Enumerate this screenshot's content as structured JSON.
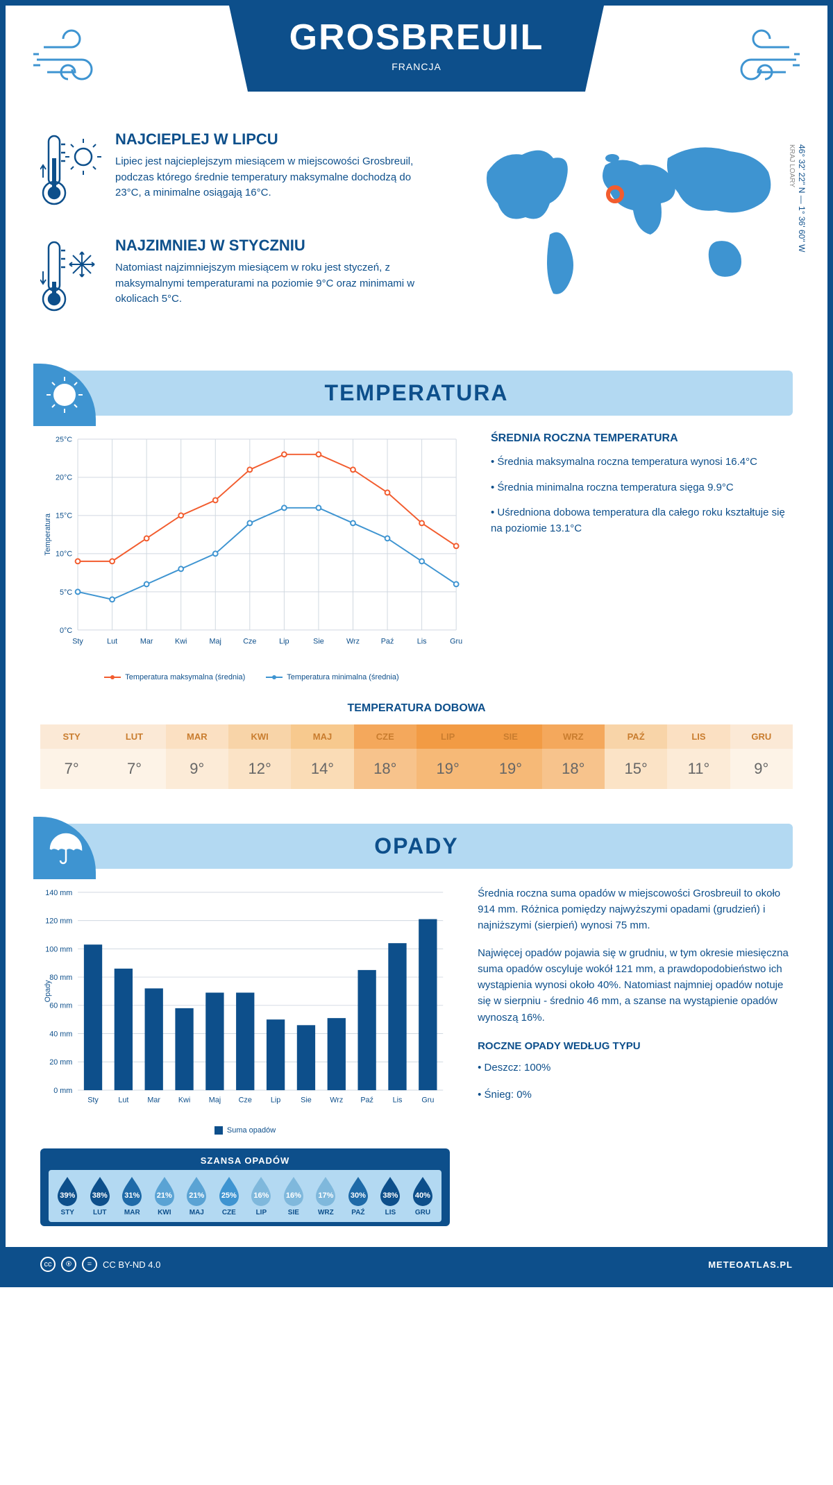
{
  "header": {
    "city": "GROSBREUIL",
    "country": "FRANCJA"
  },
  "coords": "46° 32' 22'' N — 1° 36' 60'' W",
  "region": "KRAJ LOARY",
  "intro": {
    "hot": {
      "title": "NAJCIEPLEJ W LIPCU",
      "text": "Lipiec jest najcieplejszym miesiącem w miejscowości Grosbreuil, podczas którego średnie temperatury maksymalne dochodzą do 23°C, a minimalne osiągają 16°C."
    },
    "cold": {
      "title": "NAJZIMNIEJ W STYCZNIU",
      "text": "Natomiast najzimniejszym miesiącem w roku jest styczeń, z maksymalnymi temperaturami na poziomie 9°C oraz minimami w okolicach 5°C."
    }
  },
  "sections": {
    "temp": "TEMPERATURA",
    "precip": "OPADY"
  },
  "temp_chart": {
    "type": "line",
    "months": [
      "Sty",
      "Lut",
      "Mar",
      "Kwi",
      "Maj",
      "Cze",
      "Lip",
      "Sie",
      "Wrz",
      "Paź",
      "Lis",
      "Gru"
    ],
    "ylabel": "Temperatura",
    "ylim": [
      0,
      25
    ],
    "ytick_step": 5,
    "ytick_suffix": "°C",
    "grid_color": "#d0d8e0",
    "series": [
      {
        "name": "Temperatura maksymalna (średnia)",
        "color": "#f25c2e",
        "values": [
          9,
          9,
          12,
          15,
          17,
          21,
          23,
          23,
          21,
          18,
          14,
          11
        ]
      },
      {
        "name": "Temperatura minimalna (średnia)",
        "color": "#3e94d1",
        "values": [
          5,
          4,
          6,
          8,
          10,
          14,
          16,
          16,
          14,
          12,
          9,
          6
        ]
      }
    ]
  },
  "temp_side": {
    "title": "ŚREDNIA ROCZNA TEMPERATURA",
    "bullets": [
      "Średnia maksymalna roczna temperatura wynosi 16.4°C",
      "Średnia minimalna roczna temperatura sięga 9.9°C",
      "Uśredniona dobowa temperatura dla całego roku kształtuje się na poziomie 13.1°C"
    ]
  },
  "dobowa": {
    "title": "TEMPERATURA DOBOWA",
    "months": [
      "STY",
      "LUT",
      "MAR",
      "KWI",
      "MAJ",
      "CZE",
      "LIP",
      "SIE",
      "WRZ",
      "PAŹ",
      "LIS",
      "GRU"
    ],
    "values": [
      "7°",
      "7°",
      "9°",
      "12°",
      "14°",
      "18°",
      "19°",
      "19°",
      "18°",
      "15°",
      "11°",
      "9°"
    ],
    "h_colors": [
      "#fbe9d6",
      "#fbe9d6",
      "#fbe0c2",
      "#f8d4a8",
      "#f7c98e",
      "#f4a85c",
      "#f29b44",
      "#f29b44",
      "#f4a85c",
      "#f8d4a8",
      "#fbe0c2",
      "#fbe9d6"
    ],
    "v_colors": [
      "#fdf3e7",
      "#fdf3e7",
      "#fcebd7",
      "#fbe3c6",
      "#fadcb6",
      "#f7c38c",
      "#f6b977",
      "#f6b977",
      "#f7c38c",
      "#fbe3c6",
      "#fcebd7",
      "#fdf3e7"
    ]
  },
  "precip_chart": {
    "type": "bar",
    "months": [
      "Sty",
      "Lut",
      "Mar",
      "Kwi",
      "Maj",
      "Cze",
      "Lip",
      "Sie",
      "Wrz",
      "Paź",
      "Lis",
      "Gru"
    ],
    "ylabel": "Opady",
    "ylim": [
      0,
      140
    ],
    "ytick_step": 20,
    "ytick_suffix": " mm",
    "bar_color": "#0d4f8b",
    "grid_color": "#d0d8e0",
    "legend": "Suma opadów",
    "values": [
      103,
      86,
      72,
      58,
      69,
      69,
      50,
      46,
      51,
      85,
      104,
      121
    ]
  },
  "precip_side": {
    "p1": "Średnia roczna suma opadów w miejscowości Grosbreuil to około 914 mm. Różnica pomiędzy najwyższymi opadami (grudzień) i najniższymi (sierpień) wynosi 75 mm.",
    "p2": "Najwięcej opadów pojawia się w grudniu, w tym okresie miesięczna suma opadów oscyluje wokół 121 mm, a prawdopodobieństwo ich wystąpienia wynosi około 40%. Natomiast najmniej opadów notuje się w sierpniu - średnio 46 mm, a szanse na wystąpienie opadów wynoszą 16%.",
    "type_title": "ROCZNE OPADY WEDŁUG TYPU",
    "types": [
      "Deszcz: 100%",
      "Śnieg: 0%"
    ]
  },
  "szansa": {
    "title": "SZANSA OPADÓW",
    "months": [
      "STY",
      "LUT",
      "MAR",
      "KWI",
      "MAJ",
      "CZE",
      "LIP",
      "SIE",
      "WRZ",
      "PAŹ",
      "LIS",
      "GRU"
    ],
    "pct": [
      "39%",
      "38%",
      "31%",
      "21%",
      "21%",
      "25%",
      "16%",
      "16%",
      "17%",
      "30%",
      "38%",
      "40%"
    ],
    "colors": [
      "#0d4f8b",
      "#0d4f8b",
      "#1e6aa8",
      "#5aa3d4",
      "#5aa3d4",
      "#3e94d1",
      "#7fb8dc",
      "#7fb8dc",
      "#7fb8dc",
      "#1e6aa8",
      "#0d4f8b",
      "#0d4f8b"
    ]
  },
  "footer": {
    "license": "CC BY-ND 4.0",
    "site": "METEOATLAS.PL"
  }
}
